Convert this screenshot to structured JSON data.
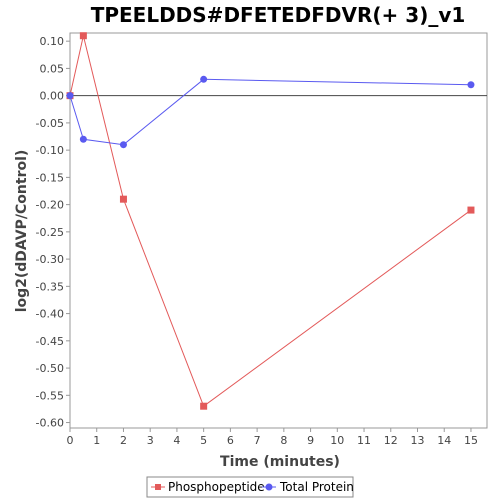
{
  "chart_data": {
    "type": "line",
    "title": "TPEELDDS#DFETEDFDVR(+ 3)_v1",
    "xlabel": "Time (minutes)",
    "ylabel": "log2(dDAVP/Control)",
    "xlim": [
      0,
      15.6
    ],
    "ylim": [
      -0.61,
      0.115
    ],
    "x_ticks": [
      "0",
      "1",
      "2",
      "3",
      "4",
      "5",
      "6",
      "7",
      "8",
      "9",
      "10",
      "11",
      "12",
      "13",
      "14",
      "15"
    ],
    "y_ticks": [
      "0.10",
      "0.05",
      "0.00",
      "-0.05",
      "-0.10",
      "-0.15",
      "-0.20",
      "-0.25",
      "-0.30",
      "-0.35",
      "-0.40",
      "-0.45",
      "-0.50",
      "-0.55",
      "-0.60"
    ],
    "grid": false,
    "legend_position": "bottom",
    "series": [
      {
        "name": "Phosphopeptide",
        "color": "#e35a5a",
        "marker": "square",
        "x": [
          0,
          0.5,
          2,
          5,
          15
        ],
        "y": [
          0.0,
          0.11,
          -0.19,
          -0.57,
          -0.21
        ]
      },
      {
        "name": "Total Protein",
        "color": "#5a5af0",
        "marker": "circle",
        "x": [
          0,
          0.5,
          2,
          5,
          15
        ],
        "y": [
          0.0,
          -0.08,
          -0.09,
          0.03,
          0.02
        ]
      }
    ]
  }
}
